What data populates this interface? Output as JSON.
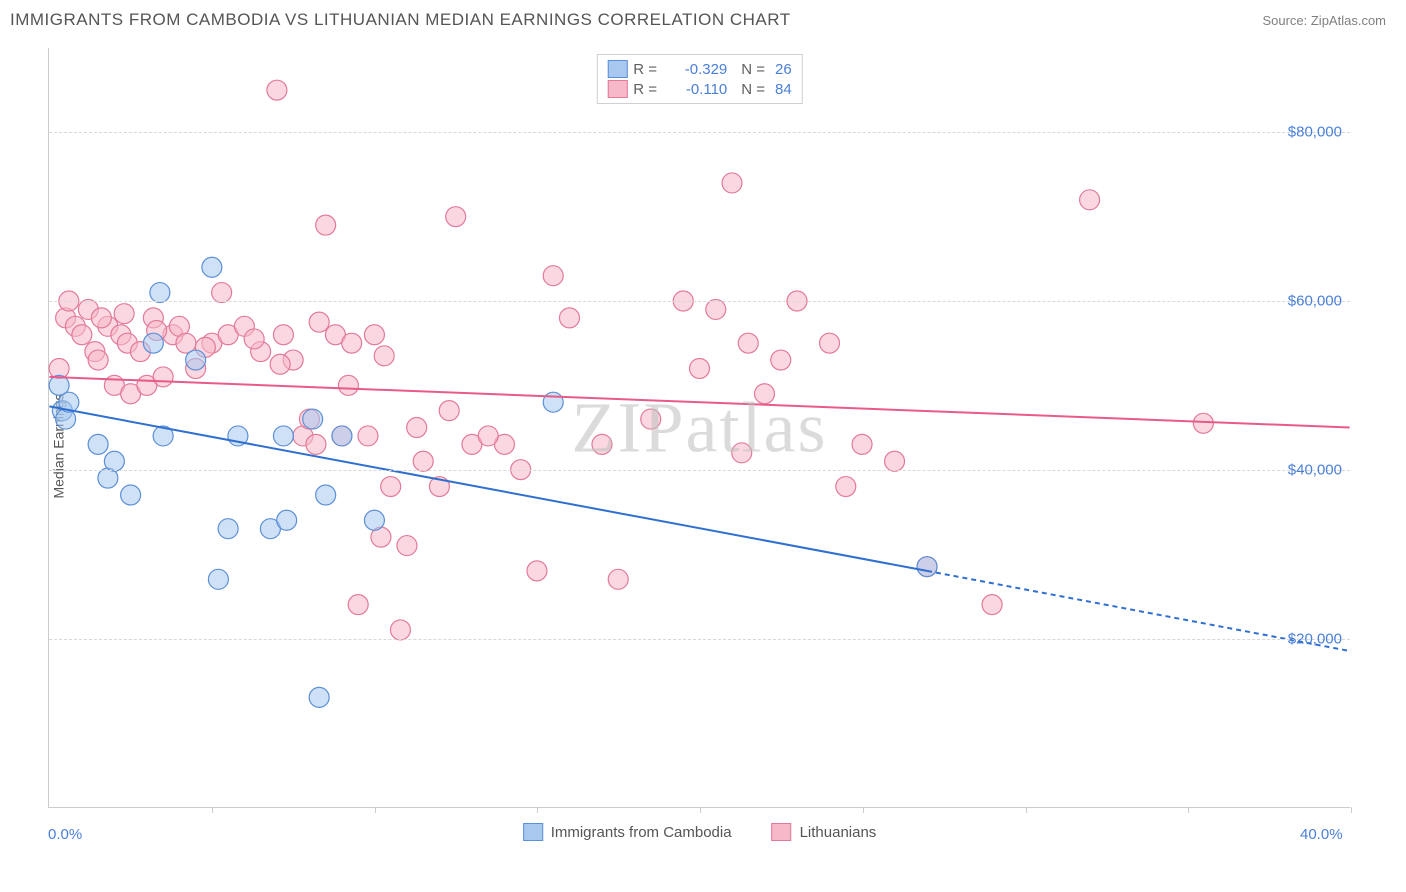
{
  "title": "IMMIGRANTS FROM CAMBODIA VS LITHUANIAN MEDIAN EARNINGS CORRELATION CHART",
  "source": "Source: ZipAtlas.com",
  "watermark": "ZIPatlas",
  "chart": {
    "type": "scatter",
    "ylabel": "Median Earnings",
    "xlim": [
      0,
      40
    ],
    "ylim": [
      0,
      90000
    ],
    "x_ticks": [
      0,
      5,
      10,
      15,
      20,
      25,
      30,
      35,
      40
    ],
    "y_gridlines": [
      20000,
      40000,
      60000,
      80000
    ],
    "y_tick_labels": [
      "$20,000",
      "$40,000",
      "$60,000",
      "$80,000"
    ],
    "x_min_label": "0.0%",
    "x_max_label": "40.0%",
    "background_color": "#ffffff",
    "grid_color": "#d8d8d8",
    "axis_color": "#cccccc",
    "tick_label_color": "#4a7fd8",
    "label_fontsize": 14,
    "tick_fontsize": 15,
    "point_radius": 10,
    "point_opacity": 0.55,
    "line_width": 2
  },
  "series": [
    {
      "name": "Immigrants from Cambodia",
      "color_fill": "#a8c8f0",
      "color_stroke": "#5b8fd6",
      "line_color": "#2f6fd0",
      "R": "-0.329",
      "N": "26",
      "trend": {
        "x1": 0,
        "y1": 47500,
        "x2": 27,
        "y2": 28000,
        "dash_x2": 40,
        "dash_y2": 18500
      },
      "points": [
        [
          0.4,
          47000
        ],
        [
          0.5,
          46000
        ],
        [
          0.6,
          48000
        ],
        [
          0.3,
          50000
        ],
        [
          1.5,
          43000
        ],
        [
          1.8,
          39000
        ],
        [
          2.0,
          41000
        ],
        [
          3.2,
          55000
        ],
        [
          3.4,
          61000
        ],
        [
          3.5,
          44000
        ],
        [
          5.0,
          64000
        ],
        [
          5.2,
          27000
        ],
        [
          5.5,
          33000
        ],
        [
          5.8,
          44000
        ],
        [
          6.8,
          33000
        ],
        [
          7.2,
          44000
        ],
        [
          7.3,
          34000
        ],
        [
          8.1,
          46000
        ],
        [
          8.3,
          13000
        ],
        [
          8.5,
          37000
        ],
        [
          9.0,
          44000
        ],
        [
          10.0,
          34000
        ],
        [
          15.5,
          48000
        ],
        [
          27.0,
          28500
        ],
        [
          2.5,
          37000
        ],
        [
          4.5,
          53000
        ]
      ]
    },
    {
      "name": "Lithuanians",
      "color_fill": "#f7b8c9",
      "color_stroke": "#e27a98",
      "line_color": "#e85a8a",
      "R": "-0.110",
      "N": "84",
      "trend": {
        "x1": 0,
        "y1": 51000,
        "x2": 40,
        "y2": 45000
      },
      "points": [
        [
          0.5,
          58000
        ],
        [
          0.8,
          57000
        ],
        [
          1.0,
          56000
        ],
        [
          1.2,
          59000
        ],
        [
          1.4,
          54000
        ],
        [
          1.5,
          53000
        ],
        [
          1.8,
          57000
        ],
        [
          2.0,
          50000
        ],
        [
          2.2,
          56000
        ],
        [
          2.4,
          55000
        ],
        [
          2.5,
          49000
        ],
        [
          2.8,
          54000
        ],
        [
          3.0,
          50000
        ],
        [
          3.2,
          58000
        ],
        [
          3.5,
          51000
        ],
        [
          3.8,
          56000
        ],
        [
          4.0,
          57000
        ],
        [
          4.2,
          55000
        ],
        [
          4.5,
          52000
        ],
        [
          5.0,
          55000
        ],
        [
          5.5,
          56000
        ],
        [
          6.0,
          57000
        ],
        [
          6.5,
          54000
        ],
        [
          7.0,
          85000
        ],
        [
          7.2,
          56000
        ],
        [
          7.5,
          53000
        ],
        [
          7.8,
          44000
        ],
        [
          8.0,
          46000
        ],
        [
          8.2,
          43000
        ],
        [
          8.5,
          69000
        ],
        [
          8.8,
          56000
        ],
        [
          9.0,
          44000
        ],
        [
          9.2,
          50000
        ],
        [
          9.5,
          24000
        ],
        [
          9.8,
          44000
        ],
        [
          10.0,
          56000
        ],
        [
          10.2,
          32000
        ],
        [
          10.5,
          38000
        ],
        [
          10.8,
          21000
        ],
        [
          11.0,
          31000
        ],
        [
          11.5,
          41000
        ],
        [
          12.0,
          38000
        ],
        [
          12.5,
          70000
        ],
        [
          13.0,
          43000
        ],
        [
          14.0,
          43000
        ],
        [
          15.0,
          28000
        ],
        [
          15.5,
          63000
        ],
        [
          16.0,
          58000
        ],
        [
          17.0,
          43000
        ],
        [
          17.5,
          27000
        ],
        [
          18.5,
          46000
        ],
        [
          19.5,
          60000
        ],
        [
          20.0,
          52000
        ],
        [
          20.5,
          59000
        ],
        [
          21.0,
          74000
        ],
        [
          21.5,
          55000
        ],
        [
          22.0,
          49000
        ],
        [
          22.5,
          53000
        ],
        [
          23.0,
          60000
        ],
        [
          24.0,
          55000
        ],
        [
          25.0,
          43000
        ],
        [
          26.0,
          41000
        ],
        [
          27.0,
          28500
        ],
        [
          29.0,
          24000
        ],
        [
          32.0,
          72000
        ],
        [
          35.5,
          45500
        ],
        [
          0.3,
          52000
        ],
        [
          0.6,
          60000
        ],
        [
          1.6,
          58000
        ],
        [
          2.3,
          58500
        ],
        [
          3.3,
          56500
        ],
        [
          4.8,
          54500
        ],
        [
          5.3,
          61000
        ],
        [
          6.3,
          55500
        ],
        [
          7.1,
          52500
        ],
        [
          8.3,
          57500
        ],
        [
          9.3,
          55000
        ],
        [
          10.3,
          53500
        ],
        [
          11.3,
          45000
        ],
        [
          12.3,
          47000
        ],
        [
          13.5,
          44000
        ],
        [
          14.5,
          40000
        ],
        [
          21.3,
          42000
        ],
        [
          24.5,
          38000
        ]
      ]
    }
  ]
}
